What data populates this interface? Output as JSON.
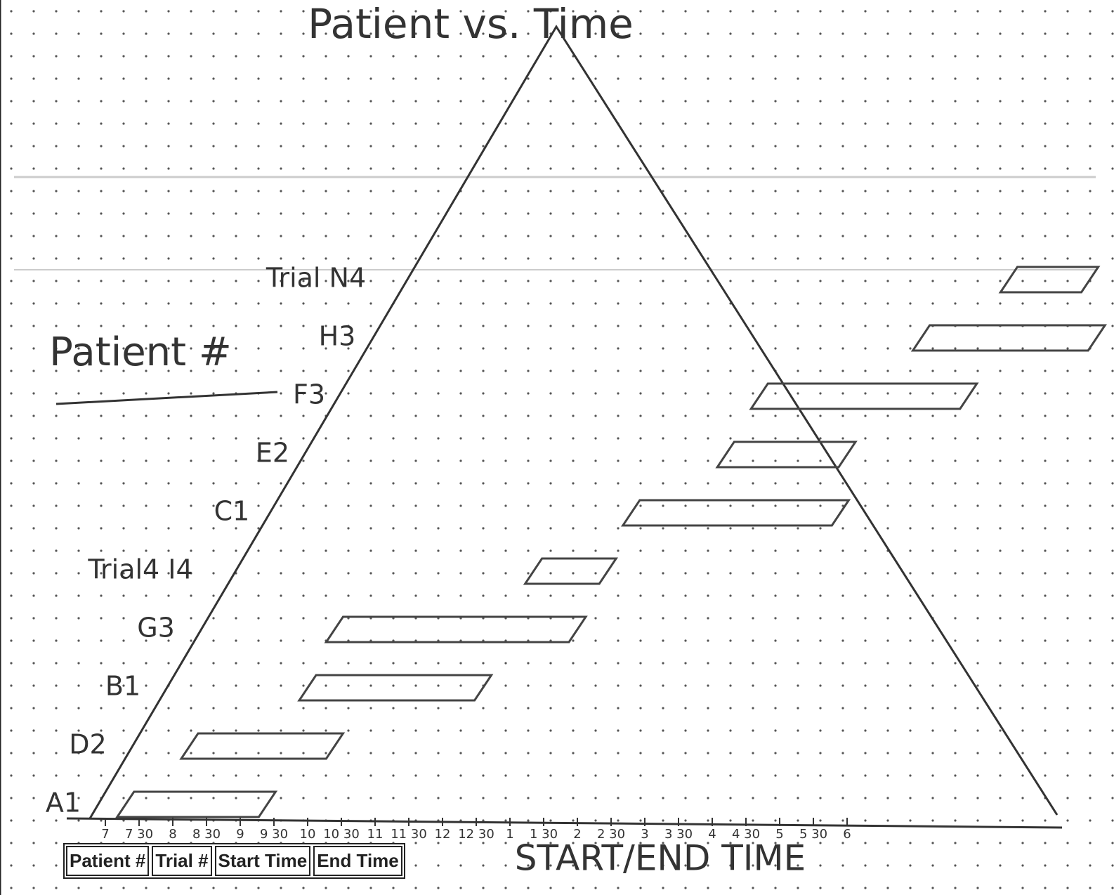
{
  "chart_data": {
    "type": "range-bar",
    "title": "Patient vs. Time",
    "y_label": "Patient #",
    "x_label": "START/END TIME",
    "categories": [
      "A1",
      "D2",
      "B1",
      "G3",
      "Trial4 I4",
      "C1",
      "E2",
      "F3",
      "H3",
      "Trial N4"
    ],
    "start": [
      7.3,
      8.25,
      10,
      10.4,
      13.35,
      14.8,
      16.2,
      16.7,
      19.1,
      20.4
    ],
    "end": [
      9.4,
      10.4,
      12.6,
      14,
      14.45,
      17.9,
      18,
      19.8,
      21.7,
      21.6
    ],
    "color": "#444444",
    "xlim": [
      6.5,
      21.5
    ],
    "xticks": [
      7,
      {
        "value": 7.5,
        "label": "7 30"
      },
      8,
      {
        "value": 8.5,
        "label": "8 30"
      },
      9,
      {
        "value": 9.5,
        "label": "9 30"
      },
      10,
      {
        "value": 10.5,
        "label": "10 30"
      },
      11,
      {
        "value": 11.5,
        "label": "11 30"
      },
      12,
      {
        "value": 12.5,
        "label": "12 30"
      },
      {
        "value": 13,
        "label": "1"
      },
      {
        "value": 13.5,
        "label": "1 30"
      },
      {
        "value": 14,
        "label": "2"
      },
      {
        "value": 14.5,
        "label": "2 30"
      },
      {
        "value": 15,
        "label": "3"
      },
      {
        "value": 15.5,
        "label": "3 30"
      },
      {
        "value": 16,
        "label": "4"
      },
      {
        "value": 16.5,
        "label": "4 30"
      },
      {
        "value": 17,
        "label": "5"
      },
      {
        "value": 17.5,
        "label": "5 30"
      },
      {
        "value": 18,
        "label": "6"
      }
    ],
    "grid": false,
    "table_header": [
      "Patient #",
      "Trial #",
      "Start Time",
      "End Time"
    ]
  }
}
